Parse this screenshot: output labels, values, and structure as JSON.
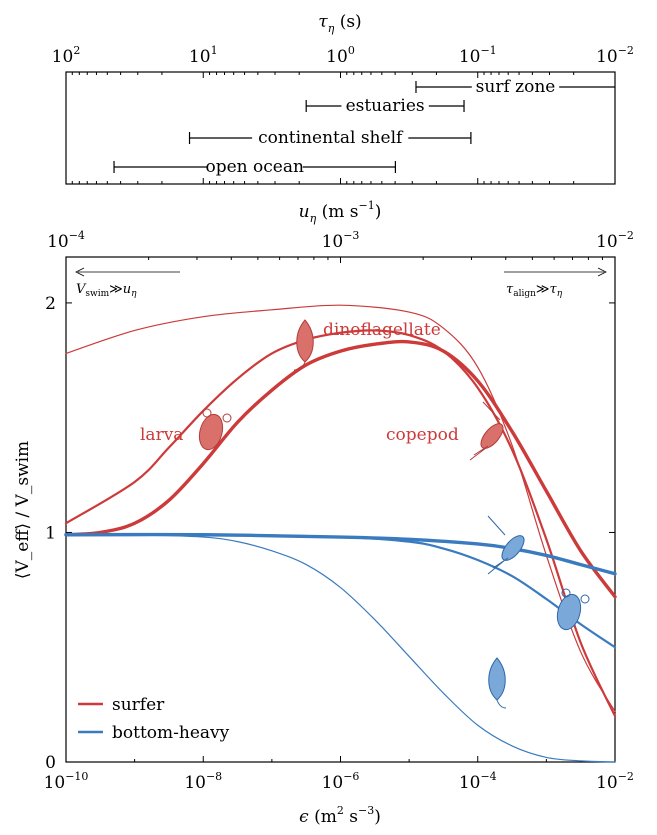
{
  "top_panel": {
    "axis_label": "τ_η (s)",
    "axis_label_main": "τ",
    "axis_label_sub": "η",
    "axis_label_unit": " (s)",
    "ticks": [
      {
        "exp": 2,
        "base": "10",
        "sup": "2"
      },
      {
        "exp": 1,
        "base": "10",
        "sup": "1"
      },
      {
        "exp": 0,
        "base": "10",
        "sup": "0"
      },
      {
        "exp": -1,
        "base": "10",
        "sup": "−1"
      },
      {
        "exp": -2,
        "base": "10",
        "sup": "−2"
      }
    ],
    "xlim_log10": [
      2,
      -2
    ],
    "ranges": [
      {
        "label": "surf zone",
        "from_log10": -0.55,
        "to_log10": -2.0
      },
      {
        "label": "estuaries",
        "from_log10": 0.25,
        "to_log10": -0.9
      },
      {
        "label": "continental shelf",
        "from_log10": 1.1,
        "to_log10": -0.95
      },
      {
        "label": "open ocean",
        "from_log10": 1.65,
        "to_log10": -0.4
      }
    ]
  },
  "main_panel": {
    "top_axis_label": "u_η (m s⁻¹)",
    "top_axis_label_main": "u",
    "top_axis_label_sub": "η",
    "top_axis_label_unit": " (m s",
    "top_axis_label_unit_sup": "−1",
    "top_axis_label_unit_close": ")",
    "top_ticks": [
      {
        "exp": -4,
        "base": "10",
        "sup": "−4"
      },
      {
        "exp": -3,
        "base": "10",
        "sup": "−3"
      },
      {
        "exp": -2,
        "base": "10",
        "sup": "−2"
      }
    ],
    "bottom_axis_label": "ϵ (m² s⁻³)",
    "bottom_axis_label_main": "ϵ",
    "bottom_axis_label_unit": " (m",
    "bottom_axis_label_unit_sup1": "2",
    "bottom_axis_label_unit_mid": " s",
    "bottom_axis_label_unit_sup2": "−3",
    "bottom_axis_label_unit_close": ")",
    "bottom_ticks": [
      {
        "exp": -10,
        "base": "10",
        "sup": "−10"
      },
      {
        "exp": -8,
        "base": "10",
        "sup": "−8"
      },
      {
        "exp": -6,
        "base": "10",
        "sup": "−6"
      },
      {
        "exp": -4,
        "base": "10",
        "sup": "−4"
      },
      {
        "exp": -2,
        "base": "10",
        "sup": "−2"
      }
    ],
    "y_axis_label": "⟨V_eff⟩ / V_swim",
    "y_ticks": [
      "0",
      "1",
      "2"
    ],
    "left_arrow": {
      "text_main": "V",
      "text_sub": "swim",
      "text_rel": "≫",
      "text_right_main": "u",
      "text_right_sub": "η"
    },
    "right_arrow": {
      "text_main": "τ",
      "text_sub": "align",
      "text_rel": "≫",
      "text_right_main": "τ",
      "text_right_sub": "η"
    },
    "organism_labels": {
      "dinoflagellate": "dinoflagellate",
      "larva": "larva",
      "copepod": "copepod"
    },
    "legend": [
      {
        "label": "surfer",
        "color": "#cc3a3a"
      },
      {
        "label": "bottom-heavy",
        "color": "#3a7bbf"
      }
    ]
  },
  "chart_data": {
    "type": "line",
    "x_scale": "log",
    "xlim": [
      1e-10,
      0.01
    ],
    "ylim": [
      0,
      2.2
    ],
    "xlabel": "ϵ (m² s⁻³)",
    "ylabel": "⟨V_eff⟩ / V_swim",
    "series": [
      {
        "name": "surfer",
        "group": "surfer",
        "organism": "dinoflagellate",
        "color": "#cc3a3a",
        "weight": "thin",
        "points": [
          [
            -10,
            1.78
          ],
          [
            -9,
            1.88
          ],
          [
            -8,
            1.94
          ],
          [
            -7,
            1.97
          ],
          [
            -6,
            1.99
          ],
          [
            -5,
            1.96
          ],
          [
            -4.5,
            1.89
          ],
          [
            -4,
            1.72
          ],
          [
            -3.5,
            1.38
          ],
          [
            -3,
            0.9
          ],
          [
            -2.5,
            0.48
          ],
          [
            -2,
            0.22
          ]
        ]
      },
      {
        "name": "surfer",
        "group": "surfer",
        "organism": "larva",
        "color": "#cc3a3a",
        "weight": "medium",
        "points": [
          [
            -10,
            1.04
          ],
          [
            -9,
            1.22
          ],
          [
            -8.5,
            1.37
          ],
          [
            -8,
            1.53
          ],
          [
            -7.5,
            1.67
          ],
          [
            -7,
            1.78
          ],
          [
            -6.5,
            1.84
          ],
          [
            -6,
            1.87
          ],
          [
            -5.5,
            1.88
          ],
          [
            -5,
            1.86
          ],
          [
            -4.5,
            1.79
          ],
          [
            -4,
            1.63
          ],
          [
            -3.5,
            1.36
          ],
          [
            -3,
            0.97
          ],
          [
            -2.5,
            0.52
          ],
          [
            -2,
            0.2
          ]
        ]
      },
      {
        "name": "surfer",
        "group": "surfer",
        "organism": "copepod",
        "color": "#cc3a3a",
        "weight": "thick",
        "points": [
          [
            -10,
            0.99
          ],
          [
            -9.5,
            1.0
          ],
          [
            -9,
            1.04
          ],
          [
            -8.5,
            1.14
          ],
          [
            -8,
            1.3
          ],
          [
            -7.5,
            1.48
          ],
          [
            -7,
            1.62
          ],
          [
            -6.5,
            1.73
          ],
          [
            -6,
            1.79
          ],
          [
            -5.5,
            1.82
          ],
          [
            -5,
            1.83
          ],
          [
            -4.5,
            1.79
          ],
          [
            -4,
            1.66
          ],
          [
            -3.5,
            1.44
          ],
          [
            -3,
            1.18
          ],
          [
            -2.5,
            0.92
          ],
          [
            -2,
            0.72
          ]
        ]
      },
      {
        "name": "bottom-heavy",
        "group": "bottom-heavy",
        "organism": "copepod",
        "color": "#3a7bbf",
        "weight": "thick",
        "points": [
          [
            -10,
            0.99
          ],
          [
            -8,
            0.99
          ],
          [
            -6,
            0.98
          ],
          [
            -5,
            0.97
          ],
          [
            -4,
            0.95
          ],
          [
            -3.5,
            0.93
          ],
          [
            -3,
            0.9
          ],
          [
            -2.5,
            0.86
          ],
          [
            -2,
            0.82
          ]
        ]
      },
      {
        "name": "bottom-heavy",
        "group": "bottom-heavy",
        "organism": "larva",
        "color": "#3a7bbf",
        "weight": "medium",
        "points": [
          [
            -10,
            0.99
          ],
          [
            -8,
            0.99
          ],
          [
            -6,
            0.98
          ],
          [
            -5,
            0.96
          ],
          [
            -4.5,
            0.93
          ],
          [
            -4,
            0.88
          ],
          [
            -3.5,
            0.81
          ],
          [
            -3,
            0.71
          ],
          [
            -2.5,
            0.6
          ],
          [
            -2,
            0.5
          ]
        ]
      },
      {
        "name": "bottom-heavy",
        "group": "bottom-heavy",
        "organism": "dinoflagellate",
        "color": "#3a7bbf",
        "weight": "thin",
        "points": [
          [
            -10,
            0.99
          ],
          [
            -9,
            0.99
          ],
          [
            -8,
            0.98
          ],
          [
            -7.5,
            0.96
          ],
          [
            -7,
            0.92
          ],
          [
            -6.5,
            0.86
          ],
          [
            -6,
            0.76
          ],
          [
            -5.5,
            0.62
          ],
          [
            -5,
            0.46
          ],
          [
            -4.5,
            0.3
          ],
          [
            -4,
            0.16
          ],
          [
            -3.5,
            0.07
          ],
          [
            -3,
            0.02
          ],
          [
            -2.5,
            0.005
          ],
          [
            -2,
            0.0
          ]
        ]
      }
    ]
  }
}
